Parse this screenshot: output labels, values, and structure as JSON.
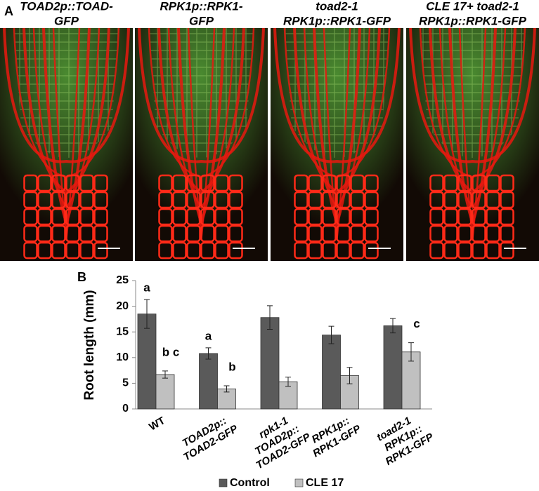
{
  "panel_a": {
    "label": "A",
    "images": [
      {
        "caption": [
          "TOAD2p::TOAD-",
          "GFP"
        ]
      },
      {
        "caption": [
          "RPK1p::RPK1-",
          "GFP"
        ]
      },
      {
        "caption": [
          "toad2-1",
          "RPK1p::RPK1-GFP"
        ]
      },
      {
        "caption": [
          "CLE 17+ toad2-1",
          "RPK1p::RPK1-GFP"
        ]
      }
    ]
  },
  "chart_data": {
    "type": "bar",
    "panel_label": "B",
    "ylabel": "Root length (mm)",
    "categories": [
      [
        "WT"
      ],
      [
        "TOAD2p::",
        "TOAD2-GFP"
      ],
      [
        "rpk1-1",
        "TOAD2p::",
        "TOAD2-GFP"
      ],
      [
        "RPK1p::",
        "RPK1-GFP"
      ],
      [
        "toad2-1",
        "RPK1p::",
        "RPK1-GFP"
      ]
    ],
    "series": [
      {
        "name": "Control",
        "color": "#5a5a5a",
        "values": [
          18.5,
          10.8,
          17.8,
          14.4,
          16.2
        ],
        "errors": [
          2.8,
          1.1,
          2.3,
          1.7,
          1.4
        ],
        "significance": [
          "a",
          "a",
          null,
          null,
          null
        ]
      },
      {
        "name": "CLE 17",
        "color": "#c0c0c0",
        "values": [
          6.7,
          3.9,
          5.3,
          6.5,
          11.1
        ],
        "errors": [
          0.7,
          0.6,
          0.9,
          1.6,
          1.8
        ],
        "significance": [
          "b c",
          "b",
          null,
          null,
          "c"
        ]
      }
    ],
    "ylim": [
      0,
      25
    ],
    "yticks": [
      0,
      5,
      10,
      15,
      20,
      25
    ],
    "legend": "bottom"
  }
}
